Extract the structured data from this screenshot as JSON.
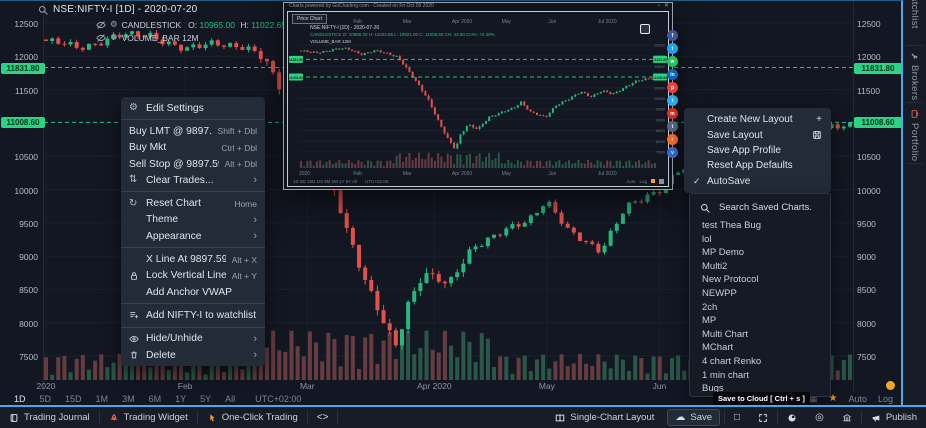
{
  "colors": {
    "accent_blue": "#4aa8ef",
    "candle_up": "#26b77e",
    "candle_down": "#e4504b",
    "badge_green": "#2bd484",
    "orange": "#f5a623",
    "menu_bg": "#242b38",
    "panel_bg": "#151a25"
  },
  "header": {
    "symbol_line": "NSE:NIFTY-I [1D] - 2020-07-20"
  },
  "legend": {
    "study": "CANDLESTICK",
    "o_label": "O:",
    "o_value": "10965.00",
    "h_label": "H:",
    "h_value": "11022.65",
    "l_label": "L:",
    "l_value": "10921.00",
    "c_label": "C:",
    "c_value": "11008.60",
    "volume_line": "VOLUME_BAR 12M"
  },
  "chart_data": {
    "type": "candlestick",
    "symbol": "NSE:NIFTY-I",
    "interval": "1D",
    "date": "2020-07-20",
    "ohlc": {
      "open": 10965.0,
      "high": 11022.65,
      "low": 10921.0,
      "close": 11008.6
    },
    "last_price": 11008.6,
    "alert_price": 11831.8,
    "order_price": 9897.59,
    "ylim": [
      7400,
      12600
    ],
    "y_ticks": [
      12500,
      12000,
      11500,
      10500,
      10000,
      9500,
      9000,
      8500,
      8000,
      7500
    ],
    "x_ticks": [
      {
        "label": "2020",
        "f": 0
      },
      {
        "label": "Feb",
        "f": 0.173
      },
      {
        "label": "Mar",
        "f": 0.325
      },
      {
        "label": "Apr 2020",
        "f": 0.483
      },
      {
        "label": "May",
        "f": 0.623
      },
      {
        "label": "Jun",
        "f": 0.763
      }
    ],
    "x_ticks_popup": [
      {
        "label": "2020",
        "f": 0.01
      },
      {
        "label": "Feb",
        "f": 0.16
      },
      {
        "label": "Mar",
        "f": 0.3
      },
      {
        "label": "Apr 2020",
        "f": 0.455
      },
      {
        "label": "May",
        "f": 0.58
      },
      {
        "label": "Jun",
        "f": 0.71
      },
      {
        "label": "Jul 2020",
        "f": 0.865
      }
    ],
    "price_keypoints": [
      [
        0,
        12230
      ],
      [
        0.04,
        12130
      ],
      [
        0.09,
        12300
      ],
      [
        0.13,
        12330
      ],
      [
        0.173,
        12080
      ],
      [
        0.21,
        12230
      ],
      [
        0.25,
        12100
      ],
      [
        0.273,
        11950
      ],
      [
        0.3,
        11350
      ],
      [
        0.33,
        10700
      ],
      [
        0.36,
        9950
      ],
      [
        0.39,
        8850
      ],
      [
        0.415,
        8100
      ],
      [
        0.436,
        7650
      ],
      [
        0.45,
        8300
      ],
      [
        0.47,
        8750
      ],
      [
        0.5,
        8550
      ],
      [
        0.53,
        9150
      ],
      [
        0.56,
        9300
      ],
      [
        0.6,
        9550
      ],
      [
        0.622,
        9850
      ],
      [
        0.65,
        9350
      ],
      [
        0.69,
        9100
      ],
      [
        0.72,
        9700
      ],
      [
        0.762,
        10000
      ],
      [
        0.79,
        10330
      ],
      [
        0.82,
        10100
      ],
      [
        0.85,
        10350
      ],
      [
        0.88,
        10200
      ],
      [
        0.91,
        10500
      ],
      [
        0.94,
        10750
      ],
      [
        0.97,
        10900
      ],
      [
        1,
        11008.6
      ]
    ],
    "volume_series": "VOLUME_BAR 12M"
  },
  "price_badges": [
    {
      "label": "11831.80",
      "price": 11831.8
    },
    {
      "label": "11008.60",
      "price": 11008.6
    }
  ],
  "context_menu": {
    "groups": [
      [
        {
          "icon": "gear-icon",
          "label": "Edit Settings"
        }
      ],
      [
        {
          "label": "Buy LMT @ 9897.59",
          "accel": "Shift + Dbl"
        },
        {
          "label": "Buy Mkt",
          "accel": "Ctrl + Dbl"
        },
        {
          "label": "Sell Stop @ 9897.59",
          "accel": "Alt + Dbl"
        },
        {
          "icon": "tune-icon",
          "label": "Clear Trades...",
          "arrow": true
        }
      ],
      [
        {
          "icon": "refresh-icon",
          "label": "Reset Chart",
          "accel": "Home"
        },
        {
          "label": "Theme",
          "arrow": true,
          "indent": true
        },
        {
          "label": "Appearance",
          "arrow": true,
          "indent": true
        }
      ],
      [
        {
          "label": "X Line At 9897.59",
          "accel": "Alt + X",
          "indent": true
        },
        {
          "icon": "lock-icon",
          "label": "Lock Vertical Line",
          "accel": "Alt + Y"
        },
        {
          "label": "Add Anchor VWAP",
          "indent": true
        }
      ],
      [
        {
          "icon": "watchlist-add-icon",
          "label": "Add NIFTY-I to watchlist"
        }
      ],
      [
        {
          "icon": "eye-icon",
          "label": "Hide/Unhide",
          "arrow": true
        },
        {
          "icon": "trash-icon",
          "label": "Delete",
          "arrow": true
        }
      ]
    ]
  },
  "layout_menu": {
    "items": [
      {
        "label": "Create New Layout",
        "right_icon": "plus-icon"
      },
      {
        "label": "Save Layout",
        "right_icon": "floppy-icon"
      },
      {
        "label": "Save App Profile"
      },
      {
        "label": "Reset App Defaults"
      },
      {
        "label": "AutoSave",
        "left_icon": "check-icon"
      }
    ]
  },
  "saved_charts": {
    "search_label": "Search Saved Charts.",
    "items": [
      "test Thea Bug",
      "lol",
      "MP Demo",
      "Multi2",
      "New Protocol",
      "NEWPP",
      "2ch",
      "MP",
      "Multi Chart",
      "MChart",
      "4 chart Renko",
      "1 min chart",
      "Bugs"
    ]
  },
  "share_buttons": [
    {
      "name": "facebook",
      "color": "#3b5998",
      "glyph": "f"
    },
    {
      "name": "twitter",
      "color": "#1da1f2",
      "glyph": "t"
    },
    {
      "name": "whatsapp",
      "color": "#25c25f",
      "glyph": "w"
    },
    {
      "name": "linkedin",
      "color": "#0a66c2",
      "glyph": "in"
    },
    {
      "name": "pinterest",
      "color": "#e64242",
      "glyph": "p"
    },
    {
      "name": "telegram",
      "color": "#2aabee",
      "glyph": "t"
    },
    {
      "name": "gmail",
      "color": "#d93025",
      "glyph": "m"
    },
    {
      "name": "tumblr",
      "color": "#56687c",
      "glyph": "t"
    },
    {
      "name": "reddit",
      "color": "#ff6a2b",
      "glyph": "r"
    },
    {
      "name": "vk",
      "color": "#3b6ad0",
      "glyph": "v"
    }
  ],
  "popup": {
    "credit_line": "Charts powered by GoCharting.com  -  Created on Fri Oct 09 2020",
    "tab_label": "Price Chart",
    "symbol_line": "NSE:NIFTY-I [1D] - 2020-07-20",
    "ohlc_line": "CANDLESTICK O: 10965.00 H: 11022.65 L: 10921.00 C: 11008.60 CH: 43.60 CH%: +0.40%",
    "volume_line": "VOLUME_BAR 12M",
    "timeframes_line": "1D  5D  15D  1M  3M  6M  1Y  5Y  All",
    "timezone": "UTC+02:00",
    "auto_label": "Auto",
    "log_label": "Log"
  },
  "timeframe_bar": {
    "items": [
      "1D",
      "5D",
      "15D",
      "1M",
      "3M",
      "6M",
      "1Y",
      "5Y",
      "All"
    ],
    "active": "1D",
    "timezone": "UTC+02:00",
    "auto_label": "Auto",
    "log_label": "Log"
  },
  "bottom_bar": {
    "left": [
      {
        "icon": "journal-icon",
        "label": "Trading Journal"
      },
      {
        "icon": "rocket-icon",
        "label": "Trading Widget"
      },
      {
        "icon": "pointer-icon",
        "label": "One-Click Trading"
      },
      {
        "icon": "code-icon",
        "label": ""
      }
    ],
    "right": [
      {
        "icon": "layout-icon",
        "label": "Single-Chart Layout"
      },
      {
        "icon": "cloud-icon",
        "label": "Save",
        "boxed": true
      },
      {
        "sep": true
      },
      {
        "icon": "square-icon",
        "label": ""
      },
      {
        "icon": "expand-icon",
        "label": ""
      },
      {
        "sep": true
      },
      {
        "icon": "screenshot-icon",
        "label": ""
      },
      {
        "icon": "target-icon",
        "label": ""
      },
      {
        "icon": "bank-icon",
        "label": ""
      },
      {
        "sep": true
      },
      {
        "icon": "megaphone-icon",
        "label": "Publish"
      }
    ]
  },
  "side_tabs": [
    {
      "label": "Watchlist"
    },
    {
      "icon": "wrench-icon",
      "label": "Brokers"
    },
    {
      "icon": "portfolio-icon",
      "label": "Portfolio"
    }
  ],
  "tooltip": "Save to Cloud [ Ctrl + s ]"
}
